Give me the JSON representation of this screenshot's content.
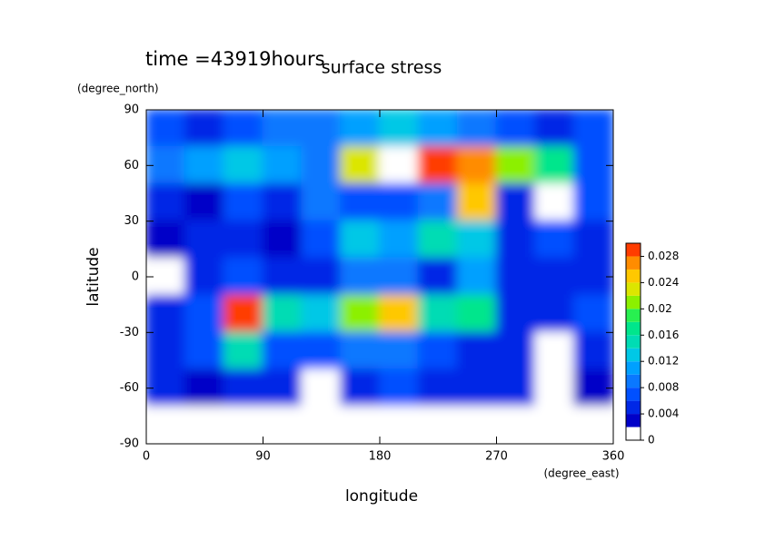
{
  "chart_data": {
    "type": "heatmap",
    "title": "surface stress",
    "subtitle": "time =43919hours",
    "x_label": "longitude",
    "x_unit": "(degree_east)",
    "y_label": "latitude",
    "y_unit": "(degree_north)",
    "x": [
      15,
      45,
      75,
      105,
      135,
      165,
      195,
      225,
      255,
      285,
      315,
      345
    ],
    "y": [
      80,
      60,
      40,
      20,
      0,
      -20,
      -40,
      -60,
      -80
    ],
    "z": [
      [
        0.006,
        0.005,
        0.006,
        0.008,
        0.008,
        0.01,
        0.012,
        0.01,
        0.008,
        0.006,
        0.004,
        0.006
      ],
      [
        0.008,
        0.01,
        0.012,
        0.01,
        0.008,
        0.022,
        0.03,
        0.028,
        0.026,
        0.02,
        0.016,
        0.006
      ],
      [
        0.004,
        0.002,
        0.006,
        0.004,
        0.008,
        0.006,
        0.006,
        0.008,
        0.024,
        0.004,
        0.001,
        0.006
      ],
      [
        0.002,
        0.004,
        0.004,
        0.002,
        0.006,
        0.012,
        0.01,
        0.014,
        0.012,
        0.004,
        0.006,
        0.004
      ],
      [
        0.001,
        0.004,
        0.006,
        0.004,
        0.004,
        0.008,
        0.008,
        0.004,
        0.01,
        0.004,
        0.004,
        0.004
      ],
      [
        0.004,
        0.006,
        0.028,
        0.014,
        0.012,
        0.02,
        0.024,
        0.014,
        0.016,
        0.004,
        0.004,
        0.006
      ],
      [
        0.004,
        0.006,
        0.014,
        0.006,
        0.006,
        0.008,
        0.008,
        0.006,
        0.004,
        0.004,
        0.001,
        0.004
      ],
      [
        0.004,
        0.002,
        0.004,
        0.004,
        0.001,
        0.004,
        0.006,
        0.004,
        0.004,
        0.004,
        0.001,
        0.002
      ],
      [
        0,
        0,
        0,
        0,
        0,
        0.001,
        0,
        0,
        0,
        0,
        0,
        0
      ]
    ],
    "xlim": [
      0,
      360
    ],
    "xticks": [
      0,
      90,
      180,
      270,
      360
    ],
    "ylim": [
      -90,
      90
    ],
    "yticks": [
      -90,
      -60,
      -30,
      0,
      30,
      60,
      90
    ],
    "zlim": [
      0,
      0.03
    ],
    "zticks": [
      0,
      0.004,
      0.008,
      0.012,
      0.016,
      0.02,
      0.024,
      0.028
    ],
    "colors": [
      "#ffffff",
      "#0000c8",
      "#0028e6",
      "#0050ff",
      "#0a78ff",
      "#00a0ff",
      "#00c8e6",
      "#00dcb4",
      "#00e68c",
      "#28f050",
      "#8cf000",
      "#dce600",
      "#ffc800",
      "#ff8c00",
      "#ff3c00"
    ],
    "over_color": "#ffffff"
  }
}
